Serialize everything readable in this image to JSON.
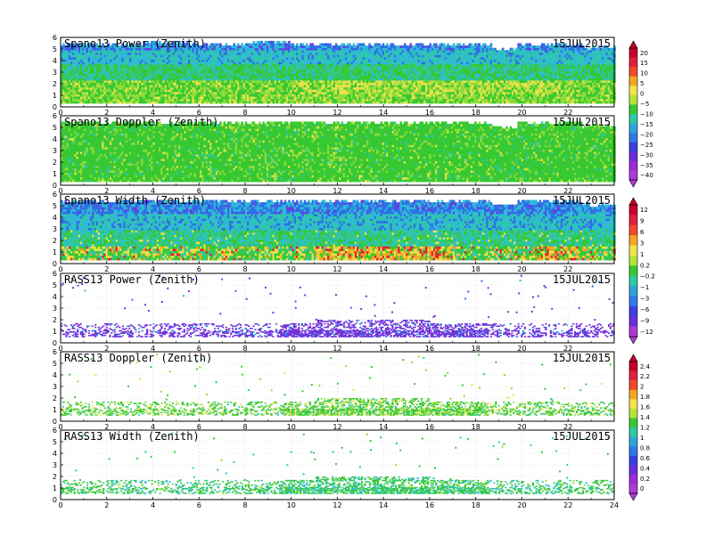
{
  "chart_data": [
    {
      "type": "heatmap",
      "title": "Spano13 Power (Zenith)",
      "date": "15JUL2015",
      "xlim": [
        0,
        24
      ],
      "ylim": [
        0,
        6
      ],
      "x_ticks": [
        "0",
        "2",
        "4",
        "6",
        "8",
        "10",
        "12",
        "14",
        "16",
        "18",
        "20",
        "22"
      ],
      "y_ticks": [
        "0",
        "1",
        "2",
        "3",
        "4",
        "5",
        "6"
      ],
      "colorbar_id": "cb1",
      "pattern": "power",
      "data_extent": [
        0.3,
        5.5
      ]
    },
    {
      "type": "heatmap",
      "title": "Spano13 Doppler (Zenith)",
      "date": "15JUL2015",
      "xlim": [
        0,
        24
      ],
      "ylim": [
        0,
        6
      ],
      "x_ticks": [
        "0",
        "2",
        "4",
        "6",
        "8",
        "10",
        "12",
        "14",
        "16",
        "18",
        "20",
        "22"
      ],
      "y_ticks": [
        "0",
        "1",
        "2",
        "3",
        "4",
        "5",
        "6"
      ],
      "colorbar_id": "cb1",
      "pattern": "doppler",
      "data_extent": [
        0.3,
        5.5
      ]
    },
    {
      "type": "heatmap",
      "title": "Spano13 Width (Zenith)",
      "date": "15JUL2015",
      "xlim": [
        0,
        24
      ],
      "ylim": [
        0,
        6
      ],
      "x_ticks": [
        "0",
        "2",
        "4",
        "6",
        "8",
        "10",
        "12",
        "14",
        "16",
        "18",
        "20",
        "22"
      ],
      "y_ticks": [
        "0",
        "1",
        "2",
        "3",
        "4",
        "5",
        "6"
      ],
      "colorbar_id": "cb2",
      "pattern": "width",
      "data_extent": [
        0.3,
        5.5
      ]
    },
    {
      "type": "heatmap",
      "title": "RASS13 Power (Zenith)",
      "date": "15JUL2015",
      "xlim": [
        0,
        24
      ],
      "ylim": [
        0,
        6
      ],
      "x_ticks": [
        "0",
        "2",
        "4",
        "6",
        "8",
        "10",
        "12",
        "14",
        "16",
        "18",
        "20",
        "22"
      ],
      "y_ticks": [
        "0",
        "1",
        "2",
        "3",
        "4",
        "5",
        "6"
      ],
      "colorbar_id": "cb2",
      "pattern": "rasspower",
      "data_extent": [
        0.5,
        1.7
      ]
    },
    {
      "type": "heatmap",
      "title": "RASS13 Doppler (Zenith)",
      "date": "15JUL2015",
      "xlim": [
        0,
        24
      ],
      "ylim": [
        0,
        6
      ],
      "x_ticks": [
        "0",
        "2",
        "4",
        "6",
        "8",
        "10",
        "12",
        "14",
        "16",
        "18",
        "20",
        "22"
      ],
      "y_ticks": [
        "0",
        "1",
        "2",
        "3",
        "4",
        "5",
        "6"
      ],
      "colorbar_id": "cb3",
      "pattern": "rassdoppler",
      "data_extent": [
        0.5,
        1.7
      ]
    },
    {
      "type": "heatmap",
      "title": "RASS13 Width (Zenith)",
      "date": "15JUL2015",
      "xlim": [
        0,
        24
      ],
      "ylim": [
        0,
        6
      ],
      "x_ticks": [
        "0",
        "2",
        "4",
        "6",
        "8",
        "10",
        "12",
        "14",
        "16",
        "18",
        "20",
        "22",
        "24"
      ],
      "y_ticks": [
        "0",
        "1",
        "2",
        "3",
        "4",
        "5",
        "6"
      ],
      "colorbar_id": "cb3",
      "pattern": "rasswidth",
      "data_extent": [
        0.5,
        1.7
      ]
    }
  ],
  "colorbars": [
    {
      "id": "cb1",
      "labels": [
        "20",
        "15",
        "10",
        "5",
        "0",
        "−5",
        "−10",
        "−15",
        "−20",
        "−25",
        "−30",
        "−35",
        "−40"
      ],
      "colors": [
        "#c8002c",
        "#e2203a",
        "#f04a2a",
        "#f5a623",
        "#f3e44a",
        "#b5e33b",
        "#37c832",
        "#2fc9a4",
        "#2ea6d8",
        "#2f7be6",
        "#3a3fe0",
        "#6a2ed8",
        "#9b2cd8",
        "#b03ad8"
      ]
    },
    {
      "id": "cb2",
      "labels": [
        "12",
        "9",
        "6",
        "3",
        "1",
        "0.2",
        "−0.2",
        "−1",
        "−3",
        "−6",
        "−9",
        "−12"
      ],
      "colors": [
        "#c8002c",
        "#e2203a",
        "#f04a2a",
        "#f5a623",
        "#f3e44a",
        "#b5e33b",
        "#37c832",
        "#2fc9a4",
        "#2ea6d8",
        "#2f7be6",
        "#3a3fe0",
        "#6a2ed8",
        "#b03ad8"
      ]
    },
    {
      "id": "cb3",
      "labels": [
        "2.4",
        "2.2",
        "2",
        "1.8",
        "1.6",
        "1.4",
        "1.2",
        "1",
        "0.8",
        "0.6",
        "0.4",
        "0.2",
        "0"
      ],
      "colors": [
        "#c8002c",
        "#e2203a",
        "#f04a2a",
        "#f5a623",
        "#f3e44a",
        "#b5e33b",
        "#37c832",
        "#2fc9a4",
        "#2ea6d8",
        "#2f7be6",
        "#3a3fe0",
        "#6a2ed8",
        "#9b2cd8",
        "#b03ad8"
      ]
    }
  ]
}
